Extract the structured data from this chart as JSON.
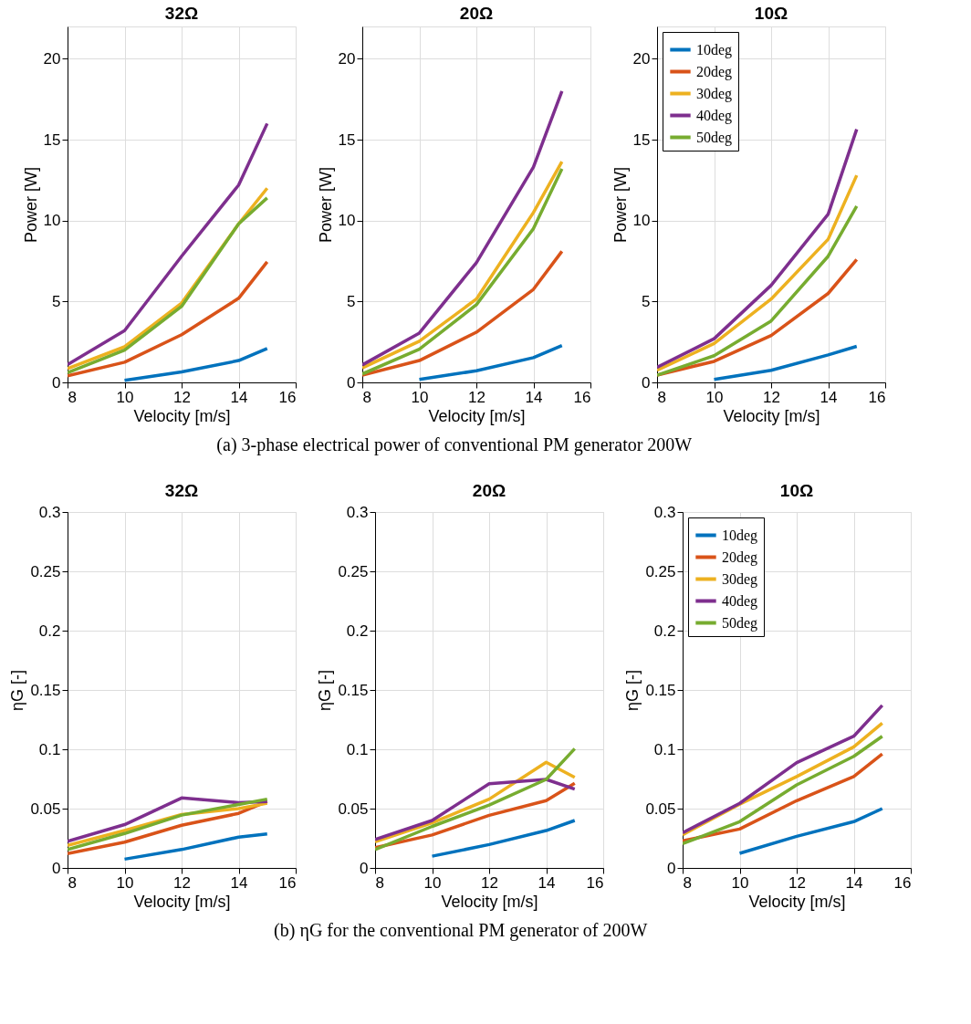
{
  "chart_data": [
    {
      "type": "line",
      "title": "32Ω",
      "xlabel": "Velocity [m/s]",
      "ylabel": "Power [W]",
      "x": [
        8,
        10,
        12,
        14,
        15
      ],
      "xlim": [
        8,
        16
      ],
      "xticks": [
        8,
        10,
        12,
        14,
        16
      ],
      "ylim": [
        0,
        22
      ],
      "yticks": [
        0,
        5,
        10,
        15,
        20
      ],
      "grid": true,
      "line_style": "solid",
      "marker": "none",
      "annotations": [
        "(a) 3-phase electrical power of conventional PM generator 200W"
      ],
      "series": [
        {
          "color": "#0072bd",
          "values": [
            null,
            0.13,
            0.65,
            1.35,
            2.1
          ]
        },
        {
          "color": "#d95319",
          "values": [
            0.4,
            1.25,
            2.95,
            5.2,
            7.45
          ]
        },
        {
          "color": "#edb120",
          "values": [
            0.85,
            2.2,
            4.9,
            9.8,
            12.0
          ]
        },
        {
          "color": "#7e2f8e",
          "values": [
            1.1,
            3.2,
            7.8,
            12.2,
            16.0
          ]
        },
        {
          "color": "#77ac30",
          "values": [
            0.6,
            2.0,
            4.7,
            9.8,
            11.4
          ]
        }
      ]
    },
    {
      "type": "line",
      "title": "20Ω",
      "xlabel": "Velocity [m/s]",
      "ylabel": "Power [W]",
      "x": [
        8,
        10,
        12,
        14,
        15
      ],
      "xlim": [
        8,
        16
      ],
      "xticks": [
        8,
        10,
        12,
        14,
        16
      ],
      "ylim": [
        0,
        22
      ],
      "yticks": [
        0,
        5,
        10,
        15,
        20
      ],
      "grid": true,
      "line_style": "solid",
      "marker": "none",
      "series": [
        {
          "color": "#0072bd",
          "values": [
            null,
            0.18,
            0.72,
            1.53,
            2.28
          ]
        },
        {
          "color": "#d95319",
          "values": [
            0.45,
            1.35,
            3.1,
            5.75,
            8.1
          ]
        },
        {
          "color": "#edb120",
          "values": [
            0.9,
            2.55,
            5.15,
            10.5,
            13.65
          ]
        },
        {
          "color": "#7e2f8e",
          "values": [
            1.08,
            3.05,
            7.4,
            13.3,
            18.0
          ]
        },
        {
          "color": "#77ac30",
          "values": [
            0.52,
            2.05,
            4.8,
            9.5,
            13.2
          ]
        }
      ]
    },
    {
      "type": "line",
      "title": "10Ω",
      "xlabel": "Velocity [m/s]",
      "ylabel": "Power [W]",
      "x": [
        8,
        10,
        12,
        14,
        15
      ],
      "xlim": [
        8,
        16
      ],
      "xticks": [
        8,
        10,
        12,
        14,
        16
      ],
      "ylim": [
        0,
        22
      ],
      "yticks": [
        0,
        5,
        10,
        15,
        20
      ],
      "grid": true,
      "legend": "top left",
      "line_style": "solid",
      "marker": "none",
      "series": [
        {
          "name": "10deg",
          "color": "#0072bd",
          "values": [
            null,
            0.18,
            0.75,
            1.7,
            2.23
          ]
        },
        {
          "name": "20deg",
          "color": "#d95319",
          "values": [
            0.45,
            1.3,
            2.9,
            5.5,
            7.6
          ]
        },
        {
          "name": "30deg",
          "color": "#edb120",
          "values": [
            0.75,
            2.4,
            5.15,
            8.85,
            12.8
          ]
        },
        {
          "name": "40deg",
          "color": "#7e2f8e",
          "values": [
            0.93,
            2.7,
            6.0,
            10.4,
            15.65
          ]
        },
        {
          "name": "50deg",
          "color": "#77ac30",
          "values": [
            0.45,
            1.65,
            3.8,
            7.8,
            10.9
          ]
        }
      ]
    },
    {
      "type": "line",
      "title": "32Ω",
      "xlabel": "Velocity [m/s]",
      "ylabel": "ηG [-]",
      "x": [
        8,
        10,
        12,
        14,
        15
      ],
      "xlim": [
        8,
        16
      ],
      "xticks": [
        8,
        10,
        12,
        14,
        16
      ],
      "ylim": [
        0,
        0.3
      ],
      "yticks": [
        0,
        0.05,
        0.1,
        0.15,
        0.2,
        0.25,
        0.3
      ],
      "grid": true,
      "line_style": "solid",
      "marker": "none",
      "annotations": [
        "(b) ηG for the conventional PM generator of 200W"
      ],
      "series": [
        {
          "color": "#0072bd",
          "values": [
            null,
            0.0074,
            0.0155,
            0.026,
            0.0286
          ]
        },
        {
          "color": "#d95319",
          "values": [
            0.012,
            0.0217,
            0.036,
            0.046,
            0.056
          ]
        },
        {
          "color": "#edb120",
          "values": [
            0.019,
            0.0315,
            0.045,
            0.05,
            0.0545
          ]
        },
        {
          "color": "#7e2f8e",
          "values": [
            0.0224,
            0.0365,
            0.059,
            0.055,
            0.056
          ]
        },
        {
          "color": "#77ac30",
          "values": [
            0.0155,
            0.029,
            0.0445,
            0.0535,
            0.058
          ]
        }
      ]
    },
    {
      "type": "line",
      "title": "20Ω",
      "xlabel": "Velocity [m/s]",
      "ylabel": "ηG [-]",
      "x": [
        8,
        10,
        12,
        14,
        15
      ],
      "xlim": [
        8,
        16
      ],
      "xticks": [
        8,
        10,
        12,
        14,
        16
      ],
      "ylim": [
        0,
        0.3
      ],
      "yticks": [
        0,
        0.05,
        0.1,
        0.15,
        0.2,
        0.25,
        0.3
      ],
      "grid": true,
      "line_style": "solid",
      "marker": "none",
      "series": [
        {
          "color": "#0072bd",
          "values": [
            null,
            0.0099,
            0.0197,
            0.0315,
            0.04
          ]
        },
        {
          "color": "#d95319",
          "values": [
            0.017,
            0.0278,
            0.0443,
            0.0567,
            0.0714
          ]
        },
        {
          "color": "#edb120",
          "values": [
            0.022,
            0.038,
            0.058,
            0.089,
            0.0764
          ]
        },
        {
          "color": "#7e2f8e",
          "values": [
            0.024,
            0.04,
            0.071,
            0.0746,
            0.0665
          ]
        },
        {
          "color": "#77ac30",
          "values": [
            0.0155,
            0.035,
            0.053,
            0.0746,
            0.1005
          ]
        }
      ]
    },
    {
      "type": "line",
      "title": "10Ω",
      "xlabel": "Velocity [m/s]",
      "ylabel": "ηG [-]",
      "x": [
        8,
        10,
        12,
        14,
        15
      ],
      "xlim": [
        8,
        16
      ],
      "xticks": [
        8,
        10,
        12,
        14,
        16
      ],
      "ylim": [
        0,
        0.3
      ],
      "yticks": [
        0,
        0.05,
        0.1,
        0.15,
        0.2,
        0.25,
        0.3
      ],
      "grid": true,
      "legend": "top left",
      "line_style": "solid",
      "marker": "none",
      "series": [
        {
          "name": "10deg",
          "color": "#0072bd",
          "values": [
            null,
            0.0123,
            0.0266,
            0.039,
            0.05
          ]
        },
        {
          "name": "20deg",
          "color": "#d95319",
          "values": [
            0.0229,
            0.0328,
            0.0567,
            0.077,
            0.096
          ]
        },
        {
          "name": "30deg",
          "color": "#edb120",
          "values": [
            0.028,
            0.0537,
            0.077,
            0.102,
            0.122
          ]
        },
        {
          "name": "40deg",
          "color": "#7e2f8e",
          "values": [
            0.0296,
            0.0544,
            0.0887,
            0.111,
            0.137
          ]
        },
        {
          "name": "50deg",
          "color": "#77ac30",
          "values": [
            0.0204,
            0.039,
            0.07,
            0.094,
            0.111
          ]
        }
      ]
    }
  ]
}
